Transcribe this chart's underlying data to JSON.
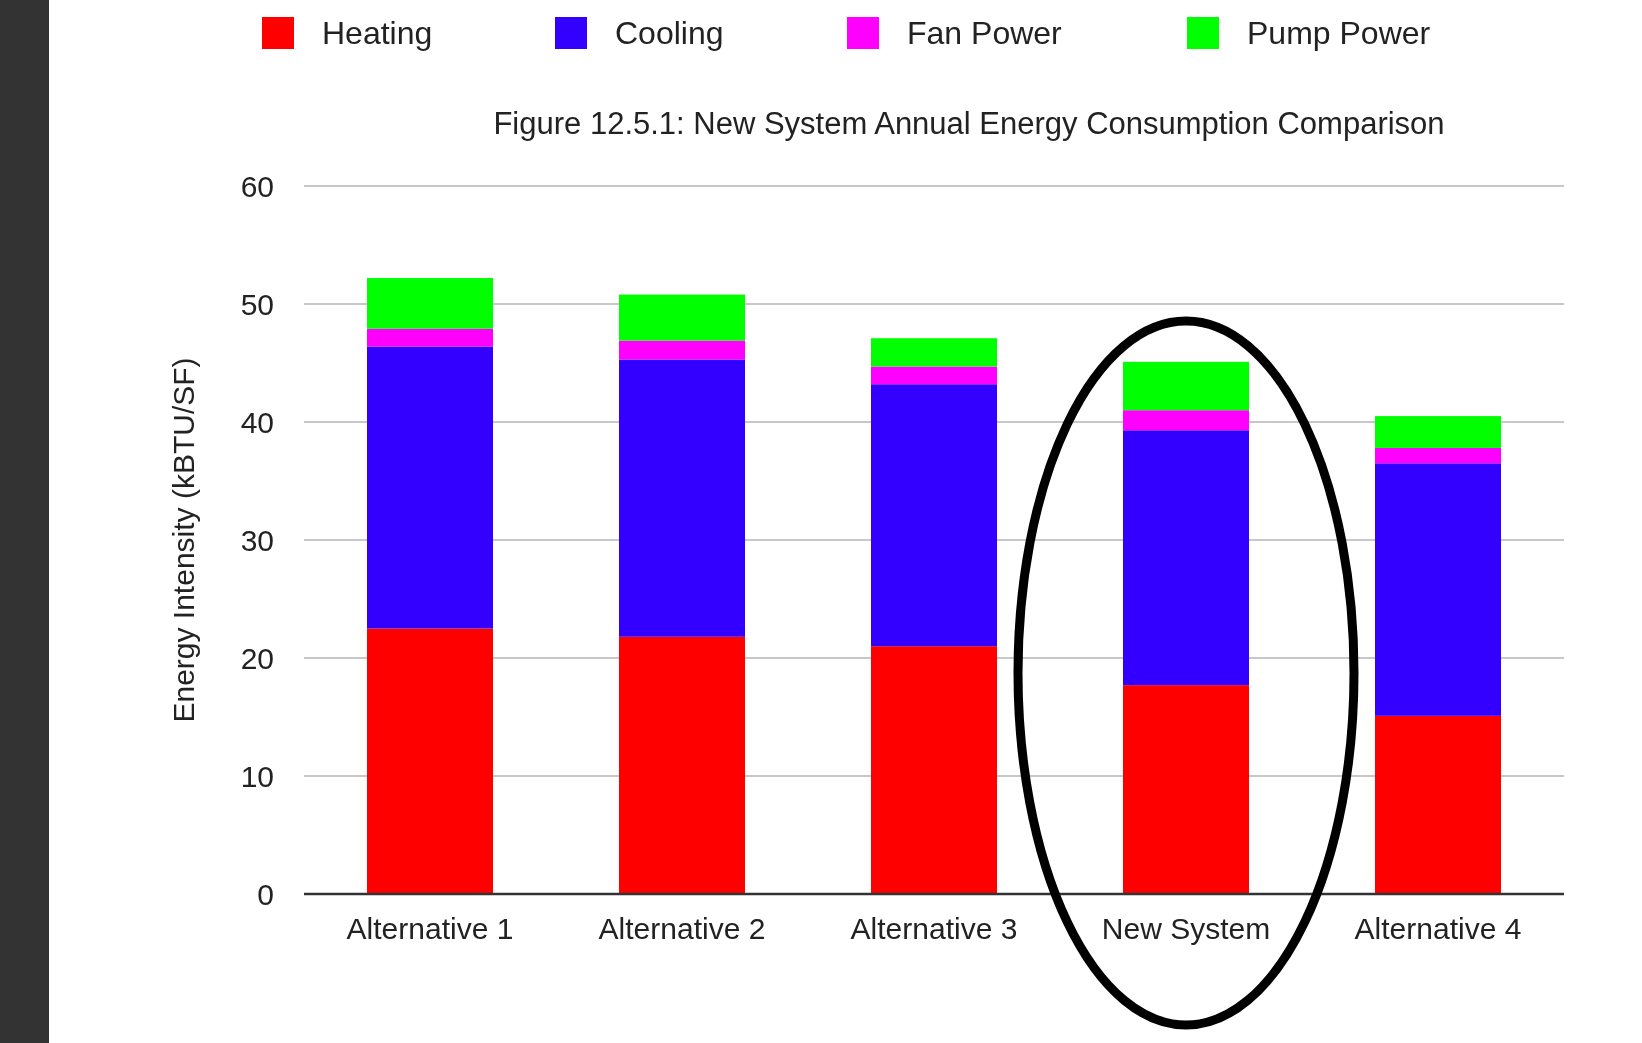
{
  "chart_data": {
    "type": "bar",
    "title": "Figure 12.5.1: New System Annual Energy Consumption Comparison",
    "ylabel": "Energy Intensity (kBTU/SF)",
    "categories": [
      "Alternative 1",
      "Alternative 2",
      "Alternative 3",
      "New System",
      "Alternative 4"
    ],
    "stacked": true,
    "ylim": [
      0,
      60
    ],
    "yticks": [
      0,
      10,
      20,
      30,
      40,
      50,
      60
    ],
    "grid": "y",
    "legend": "top",
    "series": [
      {
        "name": "Heating",
        "color": "#ff0000",
        "values": [
          22.5,
          21.8,
          21.0,
          17.7,
          15.1
        ]
      },
      {
        "name": "Cooling",
        "color": "#3300ff",
        "values": [
          23.9,
          23.5,
          22.2,
          21.6,
          21.4
        ]
      },
      {
        "name": "Fan Power",
        "color": "#ff00ff",
        "values": [
          1.5,
          1.6,
          1.5,
          1.7,
          1.3
        ]
      },
      {
        "name": "Pump Power",
        "color": "#00ff00",
        "values": [
          4.3,
          3.9,
          2.4,
          4.1,
          2.7
        ]
      }
    ]
  }
}
